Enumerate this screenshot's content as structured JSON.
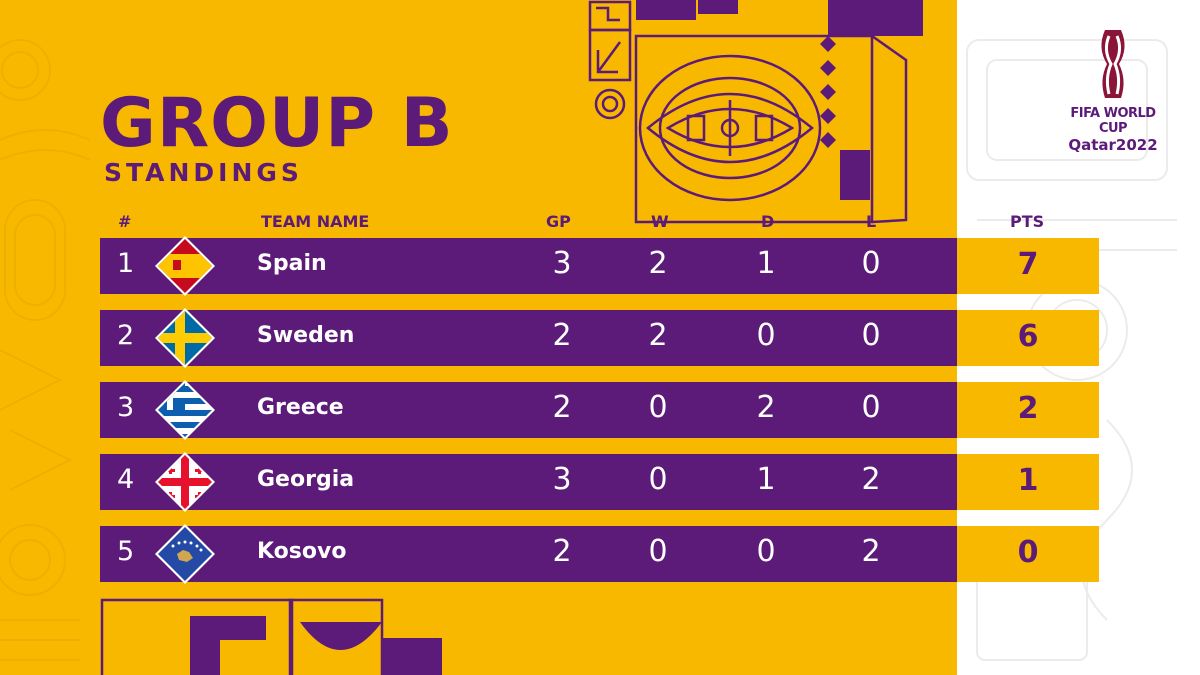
{
  "title": "GROUP B",
  "subtitle": "STANDINGS",
  "headers": {
    "rank": "#",
    "team": "TEAM NAME",
    "gp": "GP",
    "w": "W",
    "d": "D",
    "l": "L",
    "pts": "PTS"
  },
  "rows": [
    {
      "rank": "1",
      "team": "Spain",
      "gp": "3",
      "w": "2",
      "d": "1",
      "l": "0",
      "pts": "7",
      "flag": "spain-flag-icon"
    },
    {
      "rank": "2",
      "team": "Sweden",
      "gp": "2",
      "w": "2",
      "d": "0",
      "l": "0",
      "pts": "6",
      "flag": "sweden-flag-icon"
    },
    {
      "rank": "3",
      "team": "Greece",
      "gp": "2",
      "w": "0",
      "d": "2",
      "l": "0",
      "pts": "2",
      "flag": "greece-flag-icon"
    },
    {
      "rank": "4",
      "team": "Georgia",
      "gp": "3",
      "w": "0",
      "d": "1",
      "l": "2",
      "pts": "1",
      "flag": "georgia-flag-icon"
    },
    {
      "rank": "5",
      "team": "Kosovo",
      "gp": "2",
      "w": "0",
      "d": "0",
      "l": "2",
      "pts": "0",
      "flag": "kosovo-flag-icon"
    }
  ],
  "logo": {
    "line1": "FIFA WORLD CUP",
    "line2": "Qatar2022"
  },
  "colors": {
    "primary": "#5c1a79",
    "accent": "#f8b800",
    "background": "#ffffff"
  }
}
